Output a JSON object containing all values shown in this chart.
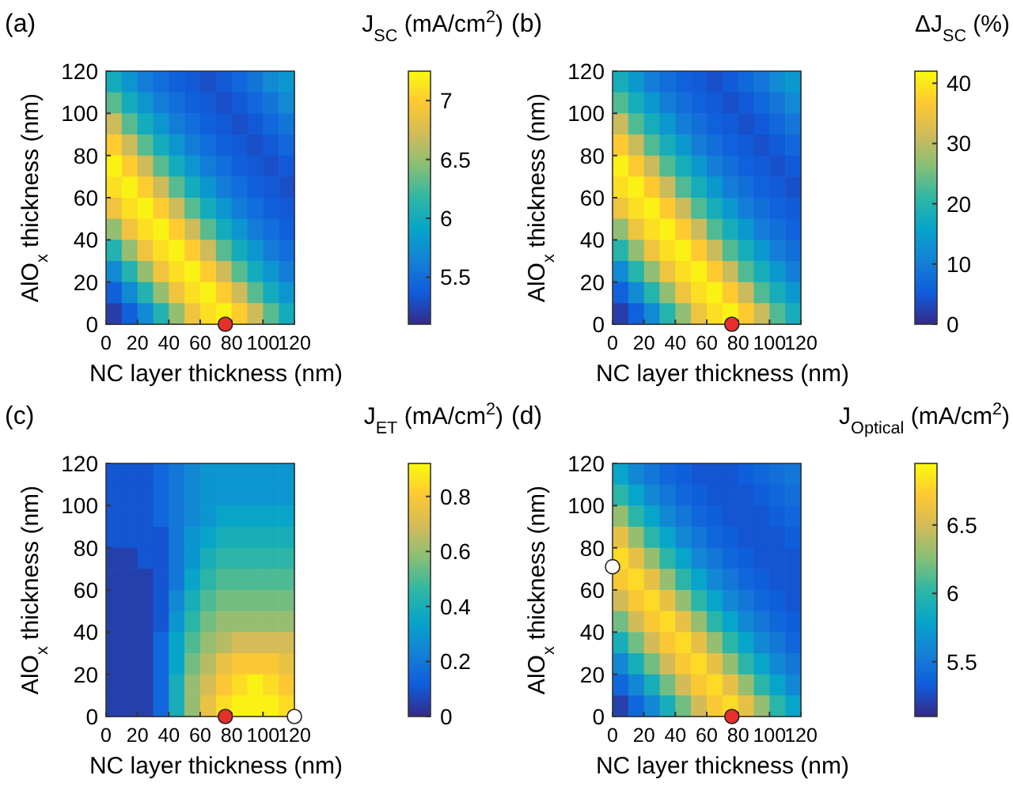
{
  "chart_data": [
    {
      "type": "heatmap",
      "title": "(a)",
      "xlabel": "NC layer thickness (nm)",
      "ylabel": "AlO$_{x}$ thickness (nm)",
      "clabel": "J$_{SC}$ (mA/cm$^{2}$)",
      "xlim": [
        0,
        120
      ],
      "xticks": [
        0,
        20,
        40,
        60,
        80,
        100,
        120
      ],
      "ylim": [
        0,
        120
      ],
      "yticks": [
        0,
        20,
        40,
        60,
        80,
        100,
        120
      ],
      "x": [
        5,
        15,
        25,
        35,
        45,
        55,
        65,
        75,
        85,
        95,
        105,
        115
      ],
      "clim": [
        5.1,
        7.25
      ],
      "cticks": [
        5.5,
        6,
        6.5,
        7
      ],
      "cells": [
        [
          6.0,
          5.8,
          5.6,
          5.5,
          5.4,
          5.35,
          5.3,
          5.35,
          5.45,
          5.55,
          5.7,
          5.8
        ],
        [
          6.3,
          6.0,
          5.8,
          5.6,
          5.5,
          5.4,
          5.35,
          5.3,
          5.35,
          5.45,
          5.55,
          5.7
        ],
        [
          6.7,
          6.3,
          6.0,
          5.8,
          5.6,
          5.5,
          5.4,
          5.35,
          5.3,
          5.35,
          5.45,
          5.55
        ],
        [
          7.0,
          6.7,
          6.3,
          6.0,
          5.8,
          5.6,
          5.5,
          5.4,
          5.35,
          5.3,
          5.35,
          5.45
        ],
        [
          7.2,
          7.0,
          6.7,
          6.3,
          6.0,
          5.8,
          5.6,
          5.5,
          5.4,
          5.35,
          5.3,
          5.35
        ],
        [
          7.1,
          7.2,
          7.0,
          6.7,
          6.3,
          6.0,
          5.8,
          5.6,
          5.5,
          5.4,
          5.35,
          5.3
        ],
        [
          6.9,
          7.1,
          7.2,
          7.0,
          6.7,
          6.3,
          6.0,
          5.8,
          5.6,
          5.5,
          5.4,
          5.35
        ],
        [
          6.5,
          6.9,
          7.1,
          7.2,
          7.0,
          6.7,
          6.3,
          6.0,
          5.8,
          5.6,
          5.5,
          5.4
        ],
        [
          6.1,
          6.5,
          6.9,
          7.1,
          7.2,
          7.0,
          6.7,
          6.3,
          6.0,
          5.8,
          5.6,
          5.5
        ],
        [
          5.7,
          6.1,
          6.5,
          6.9,
          7.1,
          7.2,
          7.0,
          6.7,
          6.3,
          6.0,
          5.8,
          5.6
        ],
        [
          5.4,
          5.7,
          6.1,
          6.5,
          6.9,
          7.1,
          7.2,
          7.0,
          6.7,
          6.3,
          6.0,
          5.8
        ],
        [
          5.2,
          5.4,
          5.7,
          6.1,
          6.5,
          6.9,
          7.1,
          7.2,
          7.0,
          6.7,
          6.3,
          6.0
        ]
      ],
      "series": [
        {
          "type": "scatter",
          "x": [
            76
          ],
          "values": [
            0
          ],
          "color": "#e8302a"
        }
      ]
    },
    {
      "type": "heatmap",
      "title": "(b)",
      "xlabel": "NC layer thickness (nm)",
      "ylabel": "AlO$_{x}$ thickness (nm)",
      "clabel": "ΔJ$_{SC}$ (%)",
      "xlim": [
        0,
        120
      ],
      "xticks": [
        0,
        20,
        40,
        60,
        80,
        100,
        120
      ],
      "ylim": [
        0,
        120
      ],
      "yticks": [
        0,
        20,
        40,
        60,
        80,
        100,
        120
      ],
      "x": [
        5,
        15,
        25,
        35,
        45,
        55,
        65,
        75,
        85,
        95,
        105,
        115
      ],
      "clim": [
        0,
        42
      ],
      "cticks": [
        0,
        10,
        20,
        30,
        40
      ],
      "cells": [
        [
          18,
          14,
          10,
          8,
          6,
          5,
          4,
          5,
          7,
          9,
          12,
          14
        ],
        [
          23,
          18,
          14,
          10,
          8,
          6,
          5,
          4,
          5,
          7,
          9,
          12
        ],
        [
          31,
          23,
          18,
          14,
          10,
          8,
          6,
          5,
          4,
          5,
          7,
          9
        ],
        [
          37,
          31,
          23,
          18,
          14,
          10,
          8,
          6,
          5,
          4,
          5,
          7
        ],
        [
          41,
          37,
          31,
          23,
          18,
          14,
          10,
          8,
          6,
          5,
          4,
          5
        ],
        [
          39,
          41,
          37,
          31,
          23,
          18,
          14,
          10,
          8,
          6,
          5,
          4
        ],
        [
          35,
          39,
          41,
          37,
          31,
          23,
          18,
          14,
          10,
          8,
          6,
          5
        ],
        [
          27,
          35,
          39,
          41,
          37,
          31,
          23,
          18,
          14,
          10,
          8,
          6
        ],
        [
          20,
          27,
          35,
          39,
          41,
          37,
          31,
          23,
          18,
          14,
          10,
          8
        ],
        [
          12,
          20,
          27,
          35,
          39,
          41,
          37,
          31,
          23,
          18,
          14,
          10
        ],
        [
          6,
          12,
          20,
          27,
          35,
          39,
          41,
          37,
          31,
          23,
          18,
          14
        ],
        [
          2,
          6,
          12,
          20,
          27,
          35,
          39,
          41,
          37,
          31,
          23,
          18
        ]
      ],
      "series": [
        {
          "type": "scatter",
          "x": [
            76
          ],
          "values": [
            0
          ],
          "color": "#e8302a"
        }
      ]
    },
    {
      "type": "heatmap",
      "title": "(c)",
      "xlabel": "NC layer thickness (nm)",
      "ylabel": "AlO$_{x}$ thickness (nm)",
      "clabel": "J$_{ET}$ (mA/cm$^{2}$)",
      "xlim": [
        0,
        120
      ],
      "xticks": [
        0,
        20,
        40,
        60,
        80,
        100,
        120
      ],
      "ylim": [
        0,
        120
      ],
      "yticks": [
        0,
        20,
        40,
        60,
        80,
        100,
        120
      ],
      "x": [
        5,
        15,
        25,
        35,
        45,
        55,
        65,
        75,
        85,
        95,
        105,
        115
      ],
      "clim": [
        0,
        0.92
      ],
      "cticks": [
        0,
        0.2,
        0.4,
        0.6,
        0.8
      ],
      "cells": [
        [
          0.1,
          0.1,
          0.1,
          0.15,
          0.2,
          0.25,
          0.3,
          0.3,
          0.3,
          0.3,
          0.3,
          0.3
        ],
        [
          0.1,
          0.1,
          0.1,
          0.15,
          0.2,
          0.25,
          0.3,
          0.3,
          0.3,
          0.3,
          0.3,
          0.3
        ],
        [
          0.1,
          0.1,
          0.1,
          0.15,
          0.2,
          0.25,
          0.3,
          0.35,
          0.35,
          0.35,
          0.35,
          0.35
        ],
        [
          0.1,
          0.1,
          0.1,
          0.1,
          0.2,
          0.3,
          0.35,
          0.4,
          0.4,
          0.4,
          0.4,
          0.4
        ],
        [
          0.05,
          0.05,
          0.1,
          0.1,
          0.2,
          0.3,
          0.4,
          0.45,
          0.45,
          0.45,
          0.45,
          0.45
        ],
        [
          0.05,
          0.05,
          0.05,
          0.1,
          0.2,
          0.35,
          0.45,
          0.5,
          0.5,
          0.5,
          0.5,
          0.5
        ],
        [
          0.05,
          0.05,
          0.05,
          0.1,
          0.25,
          0.4,
          0.5,
          0.55,
          0.55,
          0.55,
          0.55,
          0.55
        ],
        [
          0.05,
          0.05,
          0.05,
          0.1,
          0.3,
          0.45,
          0.55,
          0.6,
          0.6,
          0.6,
          0.6,
          0.6
        ],
        [
          0.05,
          0.05,
          0.05,
          0.15,
          0.35,
          0.5,
          0.6,
          0.65,
          0.7,
          0.7,
          0.7,
          0.7
        ],
        [
          0.05,
          0.05,
          0.05,
          0.15,
          0.35,
          0.55,
          0.65,
          0.75,
          0.8,
          0.8,
          0.8,
          0.75
        ],
        [
          0.05,
          0.05,
          0.05,
          0.15,
          0.4,
          0.6,
          0.7,
          0.8,
          0.85,
          0.9,
          0.85,
          0.8
        ],
        [
          0.05,
          0.05,
          0.05,
          0.15,
          0.4,
          0.6,
          0.75,
          0.85,
          0.9,
          0.9,
          0.9,
          0.85
        ]
      ],
      "series": [
        {
          "type": "scatter",
          "x": [
            76
          ],
          "values": [
            0
          ],
          "color": "#e8302a"
        },
        {
          "type": "scatter",
          "x": [
            120
          ],
          "values": [
            0
          ],
          "color": "#ffffff"
        }
      ]
    },
    {
      "type": "heatmap",
      "title": "(d)",
      "xlabel": "NC layer thickness (nm)",
      "ylabel": "AlO$_{x}$ thickness (nm)",
      "clabel": "J$_{Optical}$ (mA/cm$^{2}$)",
      "xlim": [
        0,
        120
      ],
      "xticks": [
        0,
        20,
        40,
        60,
        80,
        100,
        120
      ],
      "ylim": [
        0,
        120
      ],
      "yticks": [
        0,
        20,
        40,
        60,
        80,
        100,
        120
      ],
      "x": [
        5,
        15,
        25,
        35,
        45,
        55,
        65,
        75,
        85,
        95,
        105,
        115
      ],
      "clim": [
        5.1,
        6.95
      ],
      "cticks": [
        5.5,
        6,
        6.5
      ],
      "cells": [
        [
          5.8,
          5.6,
          5.5,
          5.4,
          5.35,
          5.3,
          5.3,
          5.3,
          5.35,
          5.4,
          5.45,
          5.5
        ],
        [
          6.0,
          5.8,
          5.6,
          5.5,
          5.4,
          5.35,
          5.3,
          5.3,
          5.3,
          5.35,
          5.4,
          5.45
        ],
        [
          6.3,
          6.0,
          5.8,
          5.6,
          5.5,
          5.4,
          5.35,
          5.3,
          5.3,
          5.3,
          5.35,
          5.4
        ],
        [
          6.6,
          6.3,
          6.0,
          5.8,
          5.6,
          5.5,
          5.4,
          5.35,
          5.3,
          5.3,
          5.3,
          5.35
        ],
        [
          6.8,
          6.6,
          6.3,
          6.0,
          5.8,
          5.6,
          5.5,
          5.4,
          5.35,
          5.3,
          5.3,
          5.3
        ],
        [
          6.7,
          6.8,
          6.6,
          6.3,
          6.0,
          5.8,
          5.6,
          5.5,
          5.4,
          5.35,
          5.3,
          5.3
        ],
        [
          6.5,
          6.7,
          6.8,
          6.6,
          6.3,
          6.0,
          5.8,
          5.6,
          5.5,
          5.4,
          5.35,
          5.3
        ],
        [
          6.2,
          6.5,
          6.7,
          6.8,
          6.6,
          6.3,
          6.0,
          5.8,
          5.6,
          5.5,
          5.4,
          5.35
        ],
        [
          5.9,
          6.2,
          6.5,
          6.7,
          6.8,
          6.6,
          6.3,
          6.0,
          5.8,
          5.6,
          5.5,
          5.4
        ],
        [
          5.6,
          5.9,
          6.2,
          6.5,
          6.7,
          6.8,
          6.6,
          6.3,
          6.0,
          5.8,
          5.6,
          5.5
        ],
        [
          5.4,
          5.6,
          5.9,
          6.2,
          6.5,
          6.7,
          6.8,
          6.6,
          6.3,
          6.0,
          5.8,
          5.6
        ],
        [
          5.2,
          5.4,
          5.6,
          5.9,
          6.2,
          6.5,
          6.7,
          6.8,
          6.6,
          6.3,
          6.0,
          5.8
        ]
      ],
      "series": [
        {
          "type": "scatter",
          "x": [
            76
          ],
          "values": [
            0
          ],
          "color": "#e8302a"
        },
        {
          "type": "scatter",
          "x": [
            0
          ],
          "values": [
            71
          ],
          "color": "#ffffff"
        }
      ]
    }
  ]
}
